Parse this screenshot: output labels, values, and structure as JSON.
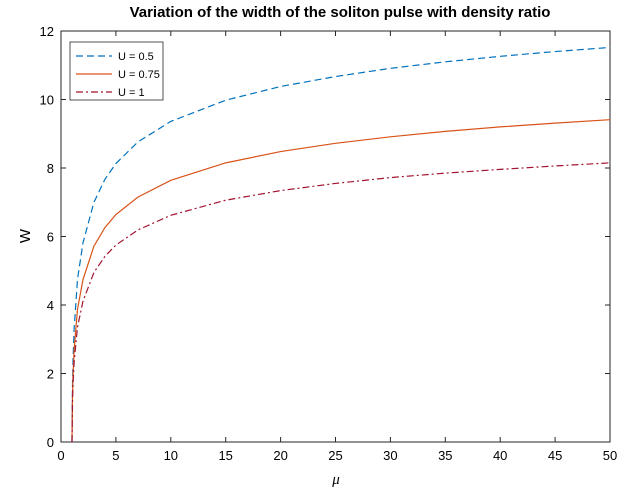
{
  "chart_data": {
    "type": "line",
    "title": "Variation of the width of the soliton pulse with density ratio",
    "xlabel": "μ",
    "ylabel": "W",
    "xlim": [
      0,
      50
    ],
    "ylim": [
      0,
      12
    ],
    "xticks": [
      0,
      5,
      10,
      15,
      20,
      25,
      30,
      35,
      40,
      45,
      50
    ],
    "yticks": [
      0,
      2,
      4,
      6,
      8,
      10,
      12
    ],
    "xtick_labels": [
      "0",
      "5",
      "10",
      "15",
      "20",
      "25",
      "30",
      "35",
      "40",
      "45",
      "50"
    ],
    "ytick_labels": [
      "0",
      "2",
      "4",
      "6",
      "8",
      "10",
      "12"
    ],
    "grid": false,
    "legend_position": "top-left",
    "x": [
      1.0,
      1.05,
      1.1,
      1.2,
      1.5,
      2,
      3,
      4,
      5,
      7,
      10,
      15,
      20,
      25,
      30,
      35,
      40,
      45,
      50
    ],
    "series": [
      {
        "name": "U = 0.5",
        "color": "#0072bd",
        "style": "dashed",
        "values": [
          0.0,
          1.74,
          2.42,
          3.33,
          4.74,
          5.81,
          7.0,
          7.67,
          8.13,
          8.76,
          9.36,
          9.98,
          10.38,
          10.67,
          10.91,
          11.1,
          11.26,
          11.4,
          11.52
        ]
      },
      {
        "name": "U = 0.75",
        "color": "#d95319",
        "style": "solid",
        "values": [
          0.0,
          1.42,
          1.98,
          2.72,
          3.87,
          4.74,
          5.72,
          6.26,
          6.64,
          7.15,
          7.64,
          8.15,
          8.48,
          8.72,
          8.91,
          9.07,
          9.2,
          9.31,
          9.41
        ]
      },
      {
        "name": "U = 1",
        "color": "#a2142f",
        "style": "dashdot",
        "values": [
          0.0,
          1.23,
          1.71,
          2.36,
          3.35,
          4.11,
          4.95,
          5.42,
          5.75,
          6.19,
          6.62,
          7.06,
          7.34,
          7.55,
          7.72,
          7.85,
          7.96,
          8.06,
          8.15
        ]
      }
    ]
  }
}
